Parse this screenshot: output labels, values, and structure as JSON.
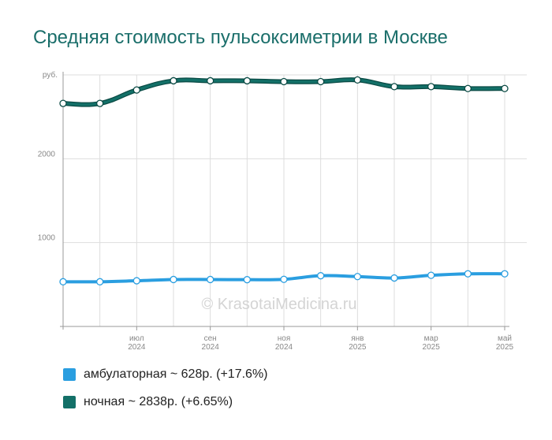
{
  "title": "Средняя стоимость пульсоксиметрии в Москве",
  "watermark": "© KrasotaiMedicina.ru",
  "colors": {
    "title": "#1a6e6a",
    "ambulatory": "#2a9ee0",
    "night": "#137068",
    "night_outline": "#0a4a44",
    "grid": "#dddddd",
    "axis": "#999999",
    "tick_text": "#888888",
    "watermark": "#d4d4d4"
  },
  "legend": [
    {
      "label": "амбулаторная ~ 628р. (+17.6%)"
    },
    {
      "label": "ночная ~ 2838р. (+6.65%)"
    }
  ],
  "chart_data": {
    "type": "line",
    "title": "Средняя стоимость пульсоксиметрии в Москве",
    "y_unit_label": "руб.",
    "ylim": [
      0,
      3000
    ],
    "y_ticks": [
      {
        "value": 1000,
        "label": "1000"
      },
      {
        "value": 2000,
        "label": "2000"
      }
    ],
    "x": [
      "2024-05",
      "2024-06",
      "2024-07",
      "2024-08",
      "2024-09",
      "2024-10",
      "2024-11",
      "2024-12",
      "2025-01",
      "2025-02",
      "2025-03",
      "2025-04",
      "2025-05"
    ],
    "x_tick_labels": [
      {
        "index": 2,
        "month": "июл",
        "year": "2024"
      },
      {
        "index": 4,
        "month": "сен",
        "year": "2024"
      },
      {
        "index": 6,
        "month": "ноя",
        "year": "2024"
      },
      {
        "index": 8,
        "month": "янв",
        "year": "2025"
      },
      {
        "index": 10,
        "month": "мар",
        "year": "2025"
      },
      {
        "index": 12,
        "month": "май",
        "year": "2025"
      }
    ],
    "grid": true,
    "legend_position": "bottom-left",
    "series": [
      {
        "name": "амбулаторная",
        "values": [
          533,
          533,
          545,
          560,
          560,
          558,
          562,
          605,
          595,
          578,
          610,
          628,
          628
        ]
      },
      {
        "name": "ночная",
        "values": [
          2660,
          2660,
          2820,
          2930,
          2930,
          2930,
          2920,
          2920,
          2940,
          2860,
          2860,
          2838,
          2838
        ]
      }
    ]
  }
}
